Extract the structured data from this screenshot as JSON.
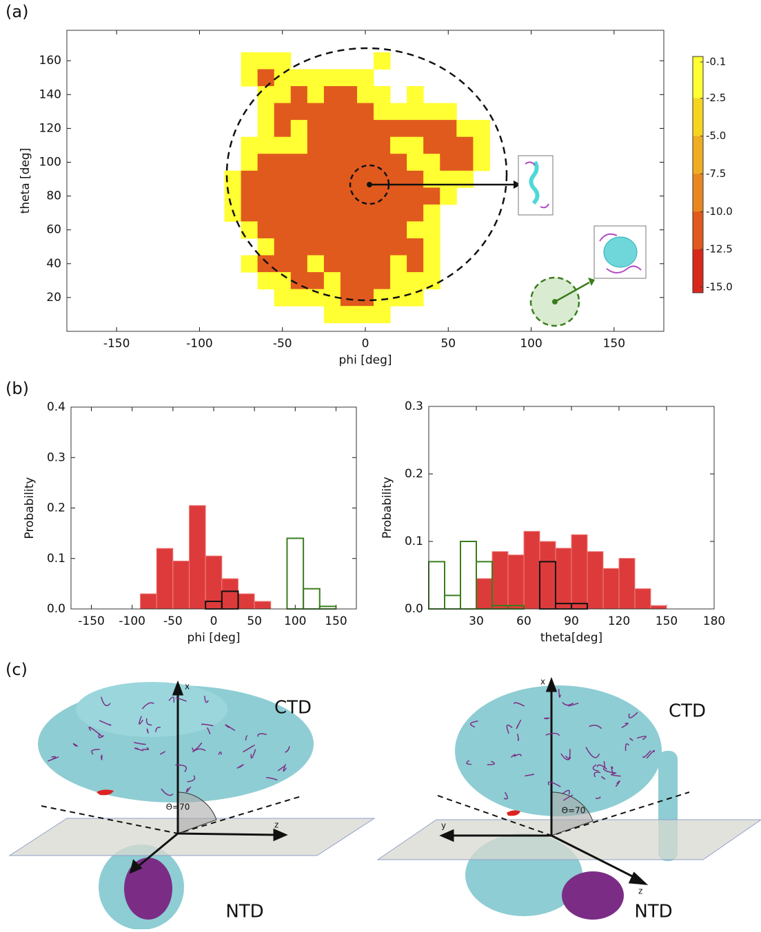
{
  "panel_labels": [
    "(a)",
    "(b)",
    "(c)"
  ],
  "chart_data": [
    {
      "type": "heatmap",
      "x_label": "phi [deg]",
      "y_label": "theta [deg]",
      "x": [
        -80,
        -70,
        -60,
        -50,
        -40,
        -30,
        -20,
        -10,
        0,
        10,
        20,
        30,
        40,
        50,
        60,
        70,
        80
      ],
      "y": [
        160,
        150,
        140,
        130,
        120,
        110,
        100,
        90,
        80,
        70,
        60,
        50,
        40,
        30,
        20,
        10
      ],
      "z": [
        [
          null,
          -1.5,
          -1.5,
          -1.5,
          null,
          null,
          null,
          null,
          null,
          -1.5,
          null,
          null,
          null,
          null,
          null,
          null,
          null
        ],
        [
          null,
          -1.5,
          -11,
          -1.5,
          -1.5,
          -1.5,
          -1.5,
          -1.5,
          -1.5,
          null,
          null,
          null,
          null,
          null,
          null,
          null,
          null
        ],
        [
          null,
          null,
          -1.5,
          -1.5,
          -11,
          -1.5,
          -11,
          -11,
          -1.5,
          -1.5,
          null,
          -1.5,
          null,
          null,
          null,
          null,
          null
        ],
        [
          null,
          null,
          -1.5,
          -11,
          -11,
          -11,
          -11,
          -11,
          -11,
          -1.5,
          -1.5,
          -1.5,
          -1.5,
          -1.5,
          null,
          null,
          null
        ],
        [
          null,
          null,
          -1.5,
          -11,
          -1.5,
          -11,
          -11,
          -11,
          -11,
          -11,
          -11,
          -11,
          -11,
          -11,
          -1.5,
          -1.5,
          null
        ],
        [
          null,
          -1.5,
          -1.5,
          -1.5,
          -1.5,
          -11,
          -11,
          -11,
          -11,
          -11,
          -1.5,
          -1.5,
          -11,
          -11,
          -11,
          -1.5,
          null
        ],
        [
          null,
          -1.5,
          -11,
          -11,
          -11,
          -11,
          -11,
          -11,
          -11,
          -11,
          -11,
          -1.5,
          -1.5,
          -11,
          -11,
          -1.5,
          null
        ],
        [
          -1.5,
          -11,
          -11,
          -11,
          -11,
          -11,
          -11,
          -11,
          -11,
          -11,
          -11,
          -11,
          -1.5,
          -1.5,
          -1.5,
          null,
          null
        ],
        [
          -1.5,
          -11,
          -11,
          -11,
          -11,
          -11,
          -11,
          -11,
          -11,
          -11,
          -11,
          -11,
          -11,
          -1.5,
          null,
          null,
          null
        ],
        [
          -1.5,
          -11,
          -11,
          -11,
          -11,
          -11,
          -11,
          -11,
          -11,
          -11,
          -11,
          -11,
          -1.5,
          null,
          null,
          null,
          null
        ],
        [
          null,
          -1.5,
          -11,
          -11,
          -11,
          -11,
          -11,
          -11,
          -11,
          -11,
          -11,
          -1.5,
          -1.5,
          null,
          null,
          null,
          null
        ],
        [
          null,
          null,
          -1.5,
          -11,
          -11,
          -11,
          -11,
          -11,
          -11,
          -11,
          -11,
          -11,
          -1.5,
          null,
          null,
          null,
          null
        ],
        [
          null,
          -1.5,
          -11,
          -11,
          -11,
          -1.5,
          -11,
          -11,
          -11,
          -11,
          -1.5,
          -11,
          -1.5,
          null,
          null,
          null,
          null
        ],
        [
          null,
          null,
          -1.5,
          -1.5,
          -11,
          -11,
          -1.5,
          -11,
          -11,
          -11,
          -1.5,
          -1.5,
          -1.5,
          null,
          null,
          null,
          null
        ],
        [
          null,
          null,
          null,
          -1.5,
          -1.5,
          -1.5,
          -1.5,
          -11,
          -11,
          -1.5,
          -1.5,
          -1.5,
          null,
          null,
          null,
          null,
          null
        ],
        [
          null,
          null,
          null,
          null,
          null,
          null,
          -1.5,
          -1.5,
          -1.5,
          -1.5,
          null,
          null,
          null,
          null,
          null,
          null,
          null
        ]
      ],
      "xlim": [
        -180,
        180
      ],
      "ylim": [
        0,
        178
      ],
      "xticks": [
        -150,
        -100,
        -50,
        0,
        50,
        100,
        150
      ],
      "yticks": [
        20,
        40,
        60,
        80,
        100,
        120,
        140,
        160
      ],
      "colorbar": {
        "levels": [
          -0.1,
          -2.5,
          {
            "value": -5,
            "label": "-5.0"
          },
          -7.5,
          {
            "value": -10,
            "label": "-10.0"
          },
          -12.5,
          {
            "value": -15,
            "label": "-15.0"
          }
        ],
        "colors": [
          "#ffff33",
          "#f6d422",
          "#efae22",
          "#e8871f",
          "#e05a1e",
          "#d8281a"
        ]
      }
    },
    {
      "type": "histogram",
      "x_label": "phi [deg]",
      "y_label": "Probability",
      "xlim": [
        -175,
        175
      ],
      "ylim": [
        0,
        0.4
      ],
      "xticks": [
        -150,
        -100,
        -50,
        0,
        50,
        100,
        150
      ],
      "yticks": [
        {
          "value": 0,
          "label": "0.0"
        },
        0.1,
        0.2,
        0.3,
        0.4
      ],
      "series": [
        {
          "color": "#dd3b3b",
          "style": "filled",
          "bins": [
            -90,
            -70,
            -50,
            -30,
            -10,
            10,
            30,
            50,
            70
          ],
          "values": [
            0.03,
            0.12,
            0.095,
            0.205,
            0.105,
            0.06,
            0.03,
            0.015
          ]
        },
        {
          "color": "#111111",
          "style": "outline",
          "bins": [
            -10,
            10,
            30
          ],
          "values": [
            0.015,
            0.035
          ]
        },
        {
          "color": "#3a7d1c",
          "style": "outline",
          "bins": [
            90,
            110,
            130,
            150
          ],
          "values": [
            0.14,
            0.04,
            0.005
          ]
        }
      ]
    },
    {
      "type": "histogram",
      "x_label": "theta[deg]",
      "y_label": "Probability",
      "xlim": [
        0,
        180
      ],
      "ylim": [
        0,
        0.3
      ],
      "xticks": [
        30,
        60,
        90,
        120,
        150,
        180
      ],
      "yticks": [
        {
          "value": 0,
          "label": "0.0"
        },
        0.1,
        0.2,
        0.3
      ],
      "series": [
        {
          "color": "#dd3b3b",
          "style": "filled",
          "bins": [
            30,
            40,
            50,
            60,
            70,
            80,
            90,
            100,
            110,
            120,
            130,
            140,
            150
          ],
          "values": [
            0.045,
            0.085,
            0.08,
            0.115,
            0.1,
            0.09,
            0.11,
            0.085,
            0.06,
            0.075,
            0.03,
            0.005
          ]
        },
        {
          "color": "#3a7d1c",
          "style": "outline",
          "bins": [
            0,
            10,
            20,
            30,
            40,
            50,
            60
          ],
          "values": [
            0.07,
            0.02,
            0.1,
            0.07,
            0.005,
            0.005
          ]
        },
        {
          "color": "#111111",
          "style": "outline",
          "bins": [
            70,
            80,
            90,
            100
          ],
          "values": [
            0.07,
            0.008,
            0.008
          ]
        }
      ]
    }
  ],
  "panel_c": [
    {
      "ctd": "CTD",
      "ntd": "NTD",
      "x": "x",
      "z": "z",
      "angle": "Θ=70"
    },
    {
      "ctd": "CTD",
      "ntd": "NTD",
      "x": "x",
      "y": "y",
      "z": "z",
      "angle": "Θ=70"
    }
  ]
}
